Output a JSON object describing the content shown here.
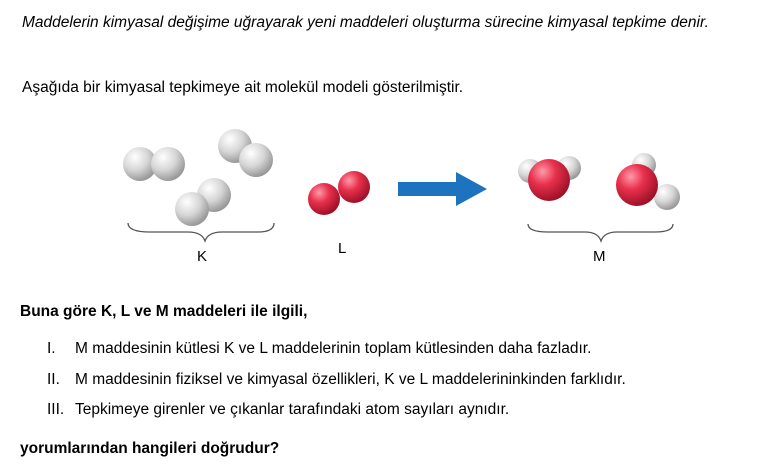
{
  "intro_text": "Maddelerin kimyasal değişime uğrayarak yeni maddeleri oluşturma sürecine kimyasal tepkime denir.",
  "subintro_text": "Aşağıda bir kimyasal tepkimeye ait molekül modeli gösterilmiştir.",
  "figure": {
    "labels": {
      "k": "K",
      "l": "L",
      "m": "M"
    },
    "colors": {
      "hydrogen_atom": "#d4d4d4",
      "oxygen_atom": "#e8304c",
      "arrow": "#1e73be"
    }
  },
  "question_text": "Buna göre K, L ve M maddeleri ile ilgili,",
  "statements": [
    {
      "num": "I.",
      "text": "M maddesinin kütlesi K ve L maddelerinin toplam kütlesinden daha fazladır."
    },
    {
      "num": "II.",
      "text": "M maddesinin fiziksel ve kimyasal özellikleri, K ve L maddelerininkinden farklıdır."
    },
    {
      "num": "III.",
      "text": "Tepkimeye girenler ve çıkanlar tarafındaki atom sayıları aynıdır."
    }
  ],
  "closing_text": "yorumlarından hangileri doğrudur?"
}
